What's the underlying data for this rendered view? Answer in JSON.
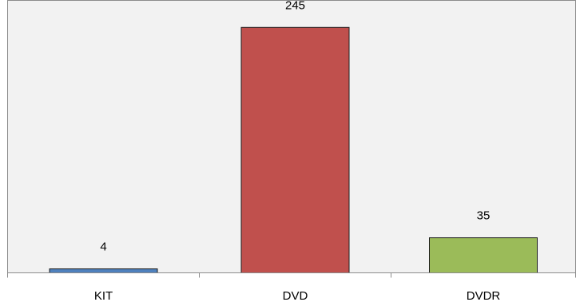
{
  "chart_data": {
    "type": "bar",
    "categories": [
      "KIT",
      "DVD",
      "DVDR"
    ],
    "values": [
      4,
      245,
      35
    ],
    "data_labels": [
      "4",
      "245",
      "35"
    ],
    "bar_colors": [
      "#4f81bd",
      "#c0504d",
      "#9bbb59"
    ],
    "bar_border_color": "#1f1f1f",
    "plot_background": "#f2f2f2",
    "axis_color": "#8c8c8c",
    "title": "",
    "xlabel": "",
    "ylabel": "",
    "ylim": [
      0,
      272
    ],
    "grid": false,
    "legend": "none"
  }
}
